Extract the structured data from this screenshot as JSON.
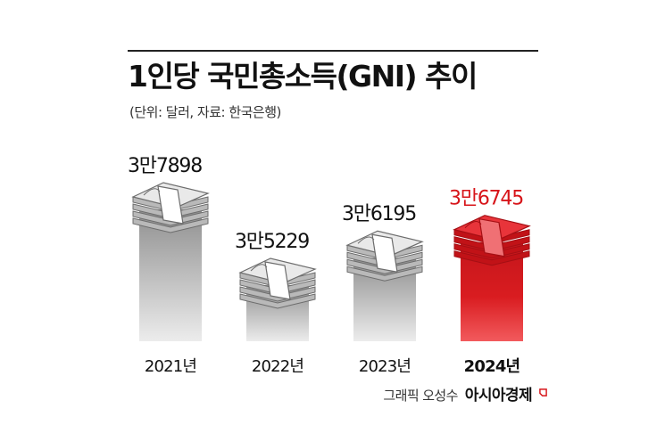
{
  "header": {
    "title": "1인당 국민총소득(GNI) 추이",
    "subtitle": "(단위: 달러, 자료: 한국은행)"
  },
  "footer": {
    "credit": "그래픽 오성수",
    "brand": "아시아경제"
  },
  "colors": {
    "normal_bar": "#9a9a9a",
    "highlight_bar": "#d7151a",
    "normal_label": "#111111",
    "highlight_label": "#d7151a"
  },
  "icons": {
    "bar_cap": "money-stack-icon",
    "brand_mark": "brand-logo-mark-icon"
  },
  "chart_data": {
    "type": "bar",
    "categories": [
      "2021년",
      "2022년",
      "2023년",
      "2024년"
    ],
    "values": [
      37898,
      35229,
      36195,
      36745
    ],
    "value_labels": [
      "3만7898",
      "3만5229",
      "3만6195",
      "3만6745"
    ],
    "highlight_index": 3,
    "unit": "달러",
    "legend": "none",
    "grid": false
  }
}
